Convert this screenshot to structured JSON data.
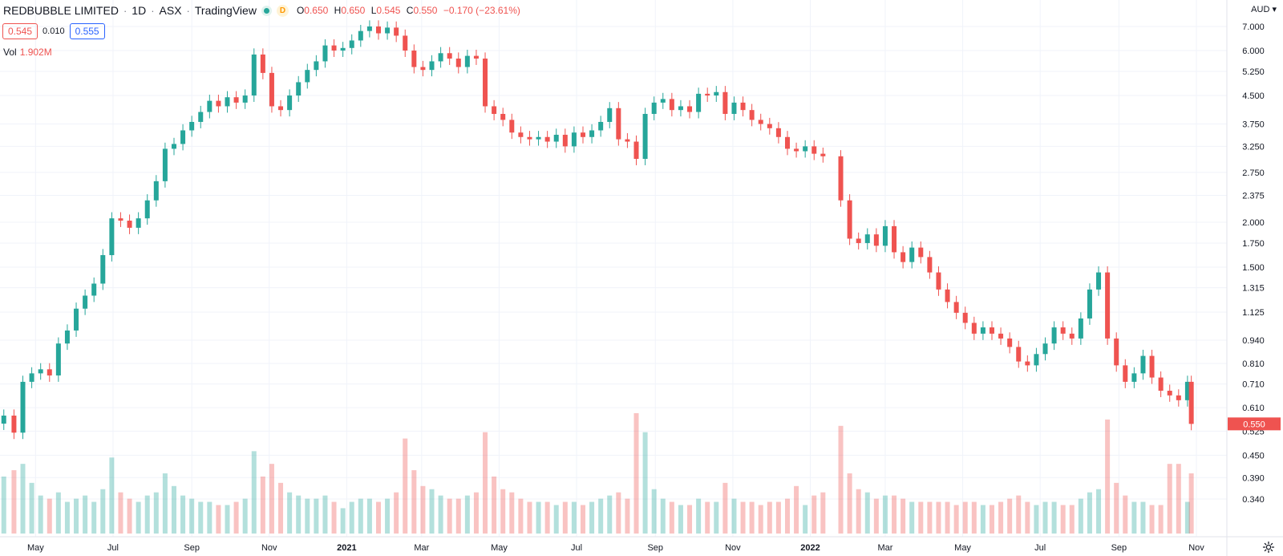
{
  "header": {
    "symbol": "REDBUBBLE LIMITED",
    "interval": "1D",
    "exchange": "ASX",
    "source": "TradingView",
    "timeframe_badge": "D",
    "open_label": "O",
    "open": "0.650",
    "high_label": "H",
    "high": "0.650",
    "low_label": "L",
    "low": "0.545",
    "close_label": "C",
    "close": "0.550",
    "change": "−0.170 (−23.61%)"
  },
  "quote": {
    "bid": "0.545",
    "spread": "0.010",
    "ask": "0.555"
  },
  "volume": {
    "label": "Vol",
    "value": "1.902M"
  },
  "currency": "AUD",
  "last_price_label": "0.550",
  "colors": {
    "up": "#26a69a",
    "down": "#ef5350",
    "grid": "#f0f3fa",
    "text": "#131722"
  },
  "chart_data": {
    "type": "candlestick",
    "scale": "log",
    "ylim": [
      0.3,
      8.3
    ],
    "y_ticks": [
      "7.000",
      "6.000",
      "5.250",
      "4.500",
      "3.750",
      "3.250",
      "2.750",
      "2.375",
      "2.000",
      "1.750",
      "1.500",
      "1.315",
      "1.125",
      "0.940",
      "0.810",
      "0.710",
      "0.610",
      "0.525",
      "0.450",
      "0.390",
      "0.340"
    ],
    "x_ticks": [
      {
        "label": "May",
        "date": "2020-05-01"
      },
      {
        "label": "Jul",
        "date": "2020-07-01"
      },
      {
        "label": "Sep",
        "date": "2020-09-01"
      },
      {
        "label": "Nov",
        "date": "2020-11-01"
      },
      {
        "label": "2021",
        "date": "2021-01-01",
        "bold": true
      },
      {
        "label": "Mar",
        "date": "2021-03-01"
      },
      {
        "label": "May",
        "date": "2021-05-01"
      },
      {
        "label": "Jul",
        "date": "2021-07-01"
      },
      {
        "label": "Sep",
        "date": "2021-09-01"
      },
      {
        "label": "Nov",
        "date": "2021-11-01"
      },
      {
        "label": "2022",
        "date": "2022-01-01",
        "bold": true
      },
      {
        "label": "Mar",
        "date": "2022-03-01"
      },
      {
        "label": "May",
        "date": "2022-05-01"
      },
      {
        "label": "Jul",
        "date": "2022-07-01"
      },
      {
        "label": "Sep",
        "date": "2022-09-01"
      },
      {
        "label": "Nov",
        "date": "2022-11-01"
      }
    ],
    "xlim": [
      "2020-04-03",
      "2022-11-25"
    ],
    "series": [
      {
        "date": "2020-04-06",
        "close": 0.58,
        "volume": 1.8
      },
      {
        "date": "2020-04-14",
        "close": 0.52,
        "volume": 2.0
      },
      {
        "date": "2020-04-21",
        "close": 0.72,
        "volume": 2.2
      },
      {
        "date": "2020-04-28",
        "close": 0.76,
        "volume": 1.6
      },
      {
        "date": "2020-05-05",
        "close": 0.78,
        "volume": 1.2
      },
      {
        "date": "2020-05-12",
        "close": 0.75,
        "volume": 1.1
      },
      {
        "date": "2020-05-19",
        "close": 0.92,
        "volume": 1.3
      },
      {
        "date": "2020-05-26",
        "close": 1.0,
        "volume": 1.0
      },
      {
        "date": "2020-06-02",
        "close": 1.15,
        "volume": 1.1
      },
      {
        "date": "2020-06-09",
        "close": 1.25,
        "volume": 1.2
      },
      {
        "date": "2020-06-16",
        "close": 1.35,
        "volume": 1.0
      },
      {
        "date": "2020-06-23",
        "close": 1.62,
        "volume": 1.4
      },
      {
        "date": "2020-06-30",
        "close": 2.05,
        "volume": 2.4
      },
      {
        "date": "2020-07-07",
        "close": 2.02,
        "volume": 1.3
      },
      {
        "date": "2020-07-14",
        "close": 1.93,
        "volume": 1.1
      },
      {
        "date": "2020-07-21",
        "close": 2.05,
        "volume": 1.0
      },
      {
        "date": "2020-07-28",
        "close": 2.3,
        "volume": 1.2
      },
      {
        "date": "2020-08-04",
        "close": 2.6,
        "volume": 1.3
      },
      {
        "date": "2020-08-11",
        "close": 3.2,
        "volume": 1.9
      },
      {
        "date": "2020-08-18",
        "close": 3.3,
        "volume": 1.5
      },
      {
        "date": "2020-08-25",
        "close": 3.6,
        "volume": 1.2
      },
      {
        "date": "2020-09-01",
        "close": 3.8,
        "volume": 1.1
      },
      {
        "date": "2020-09-08",
        "close": 4.05,
        "volume": 1.0
      },
      {
        "date": "2020-09-15",
        "close": 4.35,
        "volume": 1.0
      },
      {
        "date": "2020-09-22",
        "close": 4.2,
        "volume": 0.9
      },
      {
        "date": "2020-09-29",
        "close": 4.45,
        "volume": 0.9
      },
      {
        "date": "2020-10-06",
        "close": 4.3,
        "volume": 1.0
      },
      {
        "date": "2020-10-13",
        "close": 4.5,
        "volume": 1.1
      },
      {
        "date": "2020-10-20",
        "close": 5.85,
        "volume": 2.6
      },
      {
        "date": "2020-10-27",
        "close": 5.2,
        "volume": 1.8
      },
      {
        "date": "2020-11-03",
        "close": 4.2,
        "volume": 2.2
      },
      {
        "date": "2020-11-10",
        "close": 4.1,
        "volume": 1.6
      },
      {
        "date": "2020-11-17",
        "close": 4.5,
        "volume": 1.3
      },
      {
        "date": "2020-11-24",
        "close": 4.9,
        "volume": 1.2
      },
      {
        "date": "2020-12-01",
        "close": 5.3,
        "volume": 1.1
      },
      {
        "date": "2020-12-08",
        "close": 5.6,
        "volume": 1.1
      },
      {
        "date": "2020-12-15",
        "close": 6.2,
        "volume": 1.2
      },
      {
        "date": "2020-12-22",
        "close": 6.0,
        "volume": 1.0
      },
      {
        "date": "2020-12-29",
        "close": 6.1,
        "volume": 0.8
      },
      {
        "date": "2021-01-05",
        "close": 6.4,
        "volume": 1.0
      },
      {
        "date": "2021-01-12",
        "close": 6.8,
        "volume": 1.1
      },
      {
        "date": "2021-01-19",
        "close": 7.0,
        "volume": 1.1
      },
      {
        "date": "2021-01-26",
        "close": 6.7,
        "volume": 1.0
      },
      {
        "date": "2021-02-02",
        "close": 6.95,
        "volume": 1.1
      },
      {
        "date": "2021-02-09",
        "close": 6.6,
        "volume": 1.3
      },
      {
        "date": "2021-02-16",
        "close": 6.0,
        "volume": 3.0
      },
      {
        "date": "2021-02-23",
        "close": 5.4,
        "volume": 2.0
      },
      {
        "date": "2021-03-02",
        "close": 5.3,
        "volume": 1.5
      },
      {
        "date": "2021-03-09",
        "close": 5.6,
        "volume": 1.4
      },
      {
        "date": "2021-03-16",
        "close": 5.9,
        "volume": 1.2
      },
      {
        "date": "2021-03-23",
        "close": 5.7,
        "volume": 1.1
      },
      {
        "date": "2021-03-30",
        "close": 5.4,
        "volume": 1.1
      },
      {
        "date": "2021-04-06",
        "close": 5.8,
        "volume": 1.2
      },
      {
        "date": "2021-04-13",
        "close": 5.7,
        "volume": 1.3
      },
      {
        "date": "2021-04-20",
        "close": 4.2,
        "volume": 3.2
      },
      {
        "date": "2021-04-27",
        "close": 4.0,
        "volume": 1.8
      },
      {
        "date": "2021-05-04",
        "close": 3.85,
        "volume": 1.4
      },
      {
        "date": "2021-05-11",
        "close": 3.55,
        "volume": 1.3
      },
      {
        "date": "2021-05-18",
        "close": 3.45,
        "volume": 1.1
      },
      {
        "date": "2021-05-25",
        "close": 3.4,
        "volume": 1.0
      },
      {
        "date": "2021-06-01",
        "close": 3.45,
        "volume": 1.0
      },
      {
        "date": "2021-06-08",
        "close": 3.35,
        "volume": 1.0
      },
      {
        "date": "2021-06-15",
        "close": 3.5,
        "volume": 0.9
      },
      {
        "date": "2021-06-22",
        "close": 3.25,
        "volume": 1.0
      },
      {
        "date": "2021-06-29",
        "close": 3.55,
        "volume": 1.0
      },
      {
        "date": "2021-07-06",
        "close": 3.45,
        "volume": 0.9
      },
      {
        "date": "2021-07-13",
        "close": 3.6,
        "volume": 1.0
      },
      {
        "date": "2021-07-20",
        "close": 3.8,
        "volume": 1.1
      },
      {
        "date": "2021-07-27",
        "close": 4.15,
        "volume": 1.2
      },
      {
        "date": "2021-08-03",
        "close": 3.4,
        "volume": 1.3
      },
      {
        "date": "2021-08-10",
        "close": 3.35,
        "volume": 1.1
      },
      {
        "date": "2021-08-17",
        "close": 3.0,
        "volume": 3.8
      },
      {
        "date": "2021-08-24",
        "close": 4.0,
        "volume": 3.2
      },
      {
        "date": "2021-08-31",
        "close": 4.3,
        "volume": 1.4
      },
      {
        "date": "2021-09-07",
        "close": 4.4,
        "volume": 1.1
      },
      {
        "date": "2021-09-14",
        "close": 4.1,
        "volume": 1.0
      },
      {
        "date": "2021-09-21",
        "close": 4.2,
        "volume": 0.9
      },
      {
        "date": "2021-09-28",
        "close": 4.05,
        "volume": 0.9
      },
      {
        "date": "2021-10-05",
        "close": 4.55,
        "volume": 1.1
      },
      {
        "date": "2021-10-12",
        "close": 4.5,
        "volume": 1.0
      },
      {
        "date": "2021-10-19",
        "close": 4.6,
        "volume": 1.0
      },
      {
        "date": "2021-10-26",
        "close": 4.0,
        "volume": 1.6
      },
      {
        "date": "2021-11-02",
        "close": 4.3,
        "volume": 1.1
      },
      {
        "date": "2021-11-09",
        "close": 4.1,
        "volume": 1.0
      },
      {
        "date": "2021-11-16",
        "close": 3.85,
        "volume": 1.0
      },
      {
        "date": "2021-11-23",
        "close": 3.75,
        "volume": 0.9
      },
      {
        "date": "2021-11-30",
        "close": 3.65,
        "volume": 1.0
      },
      {
        "date": "2021-12-07",
        "close": 3.45,
        "volume": 1.0
      },
      {
        "date": "2021-12-14",
        "close": 3.2,
        "volume": 1.1
      },
      {
        "date": "2021-12-21",
        "close": 3.15,
        "volume": 1.5
      },
      {
        "date": "2021-12-28",
        "close": 3.25,
        "volume": 0.9
      },
      {
        "date": "2022-01-04",
        "close": 3.1,
        "volume": 1.2
      },
      {
        "date": "2022-01-11",
        "close": 3.05,
        "volume": 1.3
      },
      {
        "date": "2022-01-25",
        "close": 2.3,
        "volume": 3.4
      },
      {
        "date": "2022-02-01",
        "close": 1.8,
        "volume": 1.9
      },
      {
        "date": "2022-02-08",
        "close": 1.75,
        "volume": 1.4
      },
      {
        "date": "2022-02-15",
        "close": 1.85,
        "volume": 1.3
      },
      {
        "date": "2022-02-22",
        "close": 1.72,
        "volume": 1.1
      },
      {
        "date": "2022-03-01",
        "close": 1.95,
        "volume": 1.2
      },
      {
        "date": "2022-03-08",
        "close": 1.65,
        "volume": 1.2
      },
      {
        "date": "2022-03-15",
        "close": 1.55,
        "volume": 1.1
      },
      {
        "date": "2022-03-22",
        "close": 1.7,
        "volume": 1.0
      },
      {
        "date": "2022-03-29",
        "close": 1.6,
        "volume": 1.0
      },
      {
        "date": "2022-04-05",
        "close": 1.45,
        "volume": 1.0
      },
      {
        "date": "2022-04-12",
        "close": 1.3,
        "volume": 1.0
      },
      {
        "date": "2022-04-19",
        "close": 1.2,
        "volume": 1.0
      },
      {
        "date": "2022-04-26",
        "close": 1.12,
        "volume": 0.9
      },
      {
        "date": "2022-05-03",
        "close": 1.05,
        "volume": 1.0
      },
      {
        "date": "2022-05-10",
        "close": 0.98,
        "volume": 1.0
      },
      {
        "date": "2022-05-17",
        "close": 1.02,
        "volume": 0.9
      },
      {
        "date": "2022-05-24",
        "close": 0.98,
        "volume": 0.9
      },
      {
        "date": "2022-05-31",
        "close": 0.95,
        "volume": 1.0
      },
      {
        "date": "2022-06-07",
        "close": 0.9,
        "volume": 1.1
      },
      {
        "date": "2022-06-14",
        "close": 0.82,
        "volume": 1.2
      },
      {
        "date": "2022-06-21",
        "close": 0.8,
        "volume": 1.0
      },
      {
        "date": "2022-06-28",
        "close": 0.86,
        "volume": 0.9
      },
      {
        "date": "2022-07-05",
        "close": 0.92,
        "volume": 1.0
      },
      {
        "date": "2022-07-12",
        "close": 1.02,
        "volume": 1.0
      },
      {
        "date": "2022-07-19",
        "close": 0.98,
        "volume": 0.9
      },
      {
        "date": "2022-07-26",
        "close": 0.95,
        "volume": 0.9
      },
      {
        "date": "2022-08-02",
        "close": 1.08,
        "volume": 1.1
      },
      {
        "date": "2022-08-09",
        "close": 1.3,
        "volume": 1.3
      },
      {
        "date": "2022-08-16",
        "close": 1.45,
        "volume": 1.4
      },
      {
        "date": "2022-08-23",
        "close": 0.95,
        "volume": 3.6
      },
      {
        "date": "2022-08-30",
        "close": 0.8,
        "volume": 1.6
      },
      {
        "date": "2022-09-06",
        "close": 0.72,
        "volume": 1.2
      },
      {
        "date": "2022-09-13",
        "close": 0.76,
        "volume": 1.0
      },
      {
        "date": "2022-09-20",
        "close": 0.85,
        "volume": 1.0
      },
      {
        "date": "2022-09-27",
        "close": 0.74,
        "volume": 0.9
      },
      {
        "date": "2022-10-04",
        "close": 0.68,
        "volume": 0.9
      },
      {
        "date": "2022-10-11",
        "close": 0.66,
        "volume": 2.2
      },
      {
        "date": "2022-10-18",
        "close": 0.64,
        "volume": 2.2
      },
      {
        "date": "2022-10-25",
        "close": 0.72,
        "volume": 1.0
      },
      {
        "date": "2022-10-28",
        "close": 0.55,
        "volume": 1.9
      }
    ]
  }
}
